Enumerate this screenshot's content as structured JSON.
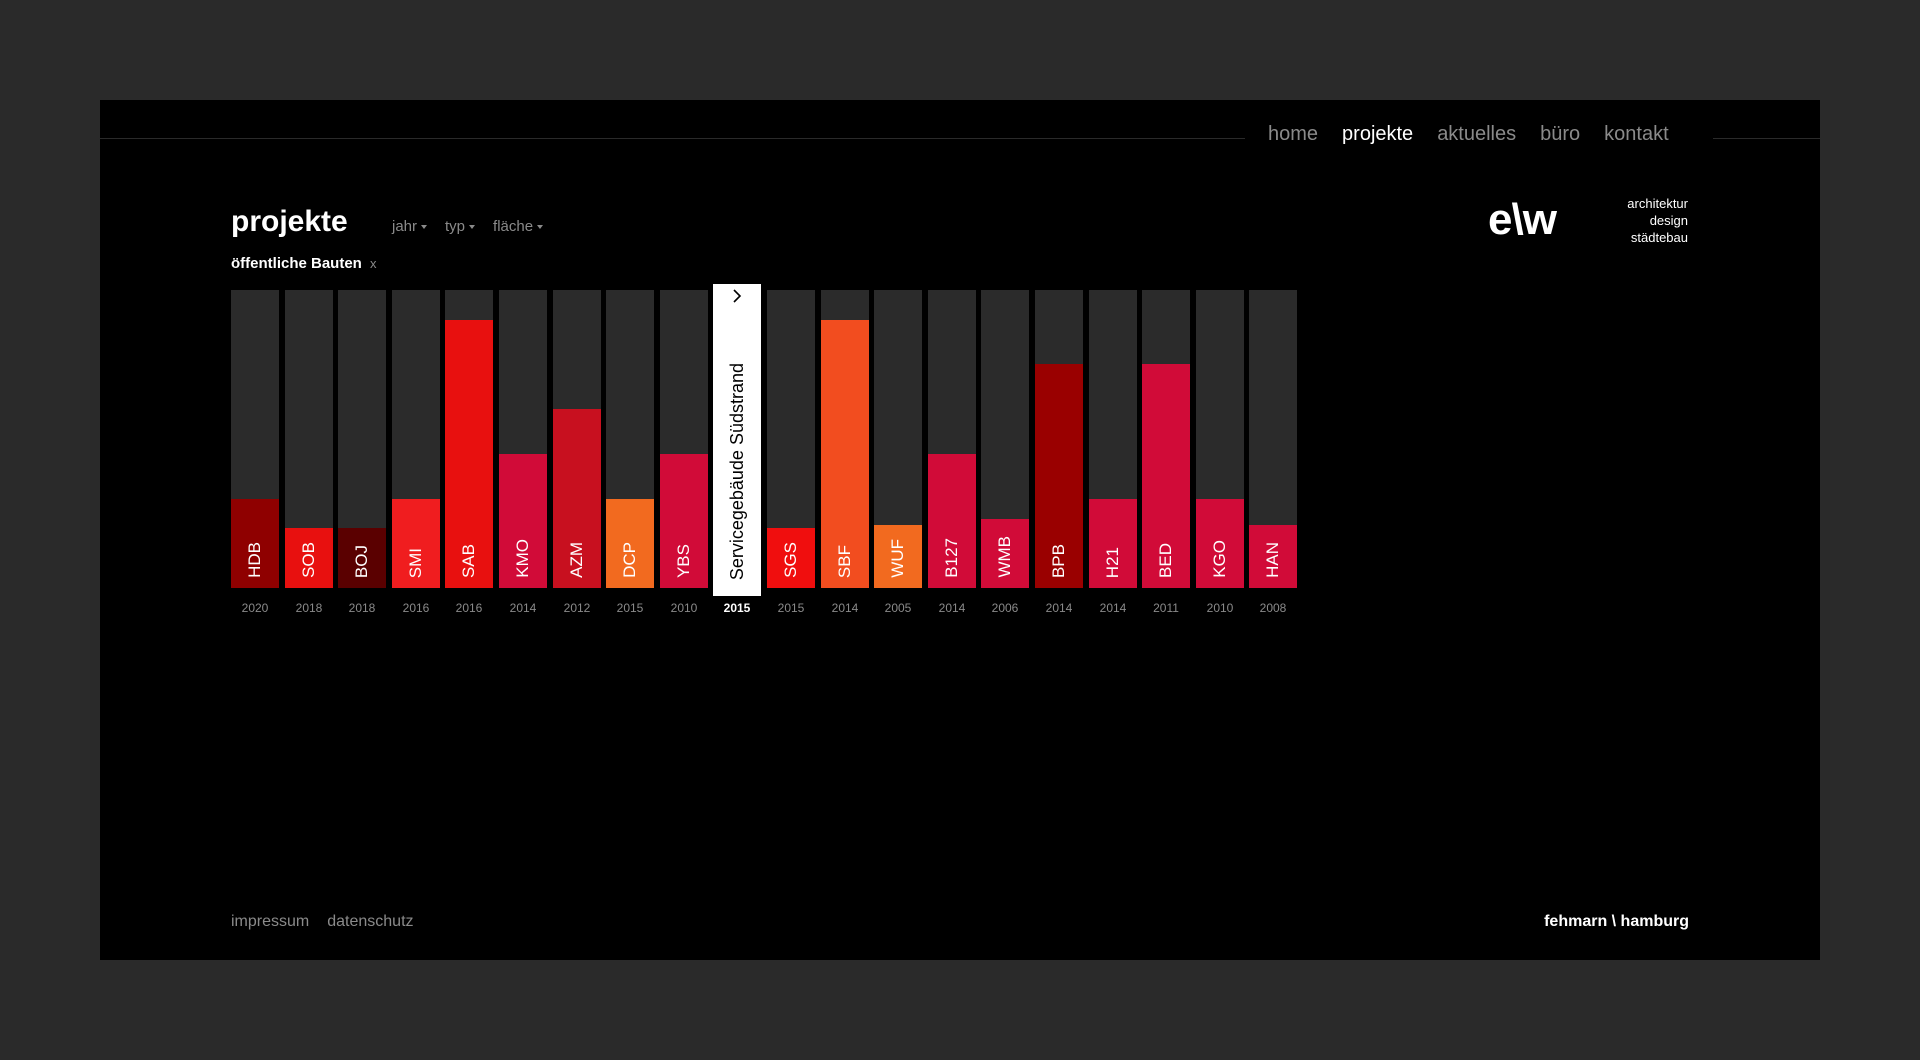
{
  "nav": {
    "items": [
      {
        "label": "home",
        "active": false
      },
      {
        "label": "projekte",
        "active": true
      },
      {
        "label": "aktuelles",
        "active": false
      },
      {
        "label": "büro",
        "active": false
      },
      {
        "label": "kontakt",
        "active": false
      }
    ]
  },
  "header": {
    "title": "projekte",
    "filters": [
      "jahr",
      "typ",
      "fläche"
    ],
    "active_filter": "öffentliche Bauten",
    "active_filter_clear": "x"
  },
  "brand": {
    "logo": "e\\w",
    "tagline": [
      "architektur",
      "design",
      "städtebau"
    ]
  },
  "chart_data": {
    "type": "bar",
    "categories": [
      "HDB",
      "SOB",
      "BOJ",
      "SMI",
      "SAB",
      "KMO",
      "AZM",
      "DCP",
      "YBS",
      "",
      "SGS",
      "SBF",
      "WUF",
      "B127",
      "WMB",
      "BPB",
      "H21",
      "BED",
      "KGO",
      "HAN"
    ],
    "years": [
      "2020",
      "2018",
      "2018",
      "2016",
      "2016",
      "2014",
      "2012",
      "2015",
      "2010",
      "2015",
      "2015",
      "2014",
      "2005",
      "2014",
      "2006",
      "2014",
      "2014",
      "2011",
      "2010",
      "2008"
    ],
    "values": [
      0.3,
      0.2,
      0.2,
      0.3,
      0.9,
      0.45,
      0.6,
      0.3,
      0.45,
      1.0,
      0.2,
      0.9,
      0.21,
      0.45,
      0.23,
      0.75,
      0.3,
      0.75,
      0.3,
      0.21
    ],
    "colors": [
      "#8f0000",
      "#e8100f",
      "#5a0000",
      "#f01d1f",
      "#e8100f",
      "#d10b38",
      "#c8101f",
      "#f26a1f",
      "#d10b38",
      "#ffffff",
      "#f00e0e",
      "#f24d1f",
      "#f26a1f",
      "#d10b38",
      "#d10b38",
      "#9a0000",
      "#d10b38",
      "#d10b38",
      "#d10b38",
      "#d10b38"
    ],
    "ylim": [
      0,
      1
    ],
    "selected_index": 9,
    "selected_label": "Servicegebäude Südstrand",
    "selected_arrow": "chevron-right-icon"
  },
  "footer": {
    "links": [
      "impressum",
      "datenschutz"
    ],
    "locations": "fehmarn \\ hamburg"
  }
}
